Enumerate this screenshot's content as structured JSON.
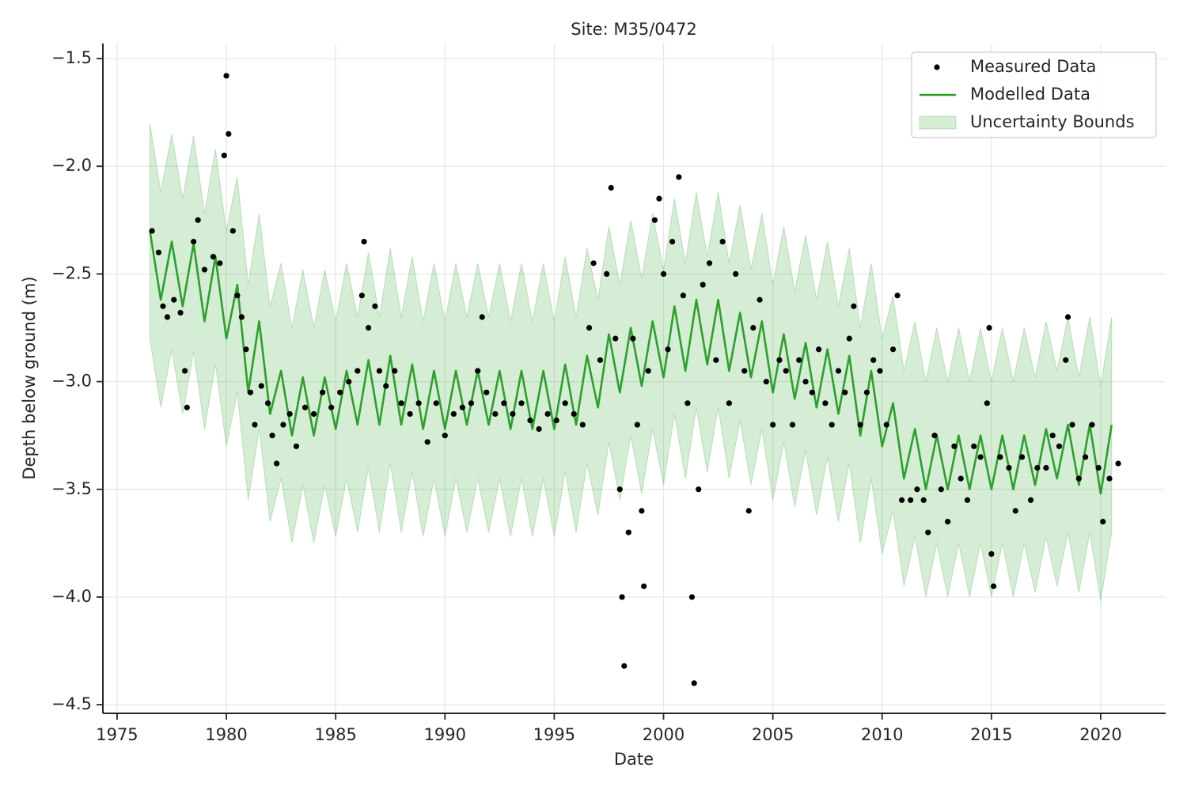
{
  "chart_data": {
    "type": "line",
    "title": "Site: M35/0472",
    "xlabel": "Date",
    "ylabel": "Depth below ground (m)",
    "xlim": [
      1974.35,
      2022.97
    ],
    "ylim": [
      -4.54,
      -1.43
    ],
    "xticks": [
      1975,
      1980,
      1985,
      1990,
      1995,
      2000,
      2005,
      2010,
      2015,
      2020
    ],
    "yticks": [
      {
        "value": -1.5,
        "label": "−1.5"
      },
      {
        "value": -2.0,
        "label": "−2.0"
      },
      {
        "value": -2.5,
        "label": "−2.5"
      },
      {
        "value": -3.0,
        "label": "−3.0"
      },
      {
        "value": -3.5,
        "label": "−3.5"
      },
      {
        "value": -4.0,
        "label": "−4.0"
      },
      {
        "value": -4.5,
        "label": "−4.5"
      }
    ],
    "grid": true,
    "legend": "upper right",
    "series": [
      {
        "name": "Measured Data",
        "color": "#000000",
        "style": "scatter",
        "x": [
          1976.6,
          1976.9,
          1977.1,
          1977.3,
          1977.6,
          1977.9,
          1978.1,
          1978.2,
          1978.5,
          1978.7,
          1979.0,
          1979.4,
          1979.7,
          1979.9,
          1980.0,
          1980.1,
          1980.3,
          1980.5,
          1980.7,
          1980.9,
          1981.1,
          1981.3,
          1981.6,
          1981.9,
          1982.1,
          1982.3,
          1982.6,
          1982.9,
          1983.2,
          1983.6,
          1984.0,
          1984.4,
          1984.8,
          1985.2,
          1985.6,
          1986.0,
          1986.2,
          1986.3,
          1986.5,
          1986.8,
          1987.0,
          1987.3,
          1987.7,
          1988.0,
          1988.4,
          1988.8,
          1989.2,
          1989.6,
          1990.0,
          1990.4,
          1990.8,
          1991.2,
          1991.5,
          1991.7,
          1991.9,
          1992.3,
          1992.7,
          1993.1,
          1993.5,
          1993.9,
          1994.3,
          1994.7,
          1995.1,
          1995.5,
          1995.9,
          1996.3,
          1996.6,
          1996.8,
          1997.1,
          1997.4,
          1997.6,
          1997.8,
          1998.0,
          1998.1,
          1998.2,
          1998.4,
          1998.6,
          1998.8,
          1999.0,
          1999.1,
          1999.3,
          1999.6,
          1999.8,
          2000.0,
          2000.2,
          2000.4,
          2000.7,
          2000.9,
          2001.1,
          2001.3,
          2001.4,
          2001.6,
          2001.8,
          2002.1,
          2002.4,
          2002.7,
          2003.0,
          2003.3,
          2003.7,
          2003.9,
          2004.1,
          2004.4,
          2004.7,
          2005.0,
          2005.3,
          2005.6,
          2005.9,
          2006.2,
          2006.5,
          2006.8,
          2007.1,
          2007.4,
          2007.7,
          2008.0,
          2008.3,
          2008.5,
          2008.7,
          2009.0,
          2009.3,
          2009.6,
          2009.9,
          2010.2,
          2010.5,
          2010.7,
          2010.9,
          2011.3,
          2011.6,
          2011.9,
          2012.1,
          2012.4,
          2012.7,
          2013.0,
          2013.3,
          2013.6,
          2013.9,
          2014.2,
          2014.5,
          2014.8,
          2014.9,
          2015.0,
          2015.1,
          2015.4,
          2015.8,
          2016.1,
          2016.4,
          2016.8,
          2017.1,
          2017.5,
          2017.8,
          2018.1,
          2018.4,
          2018.5,
          2018.7,
          2019.0,
          2019.3,
          2019.6,
          2019.9,
          2020.1,
          2020.4,
          2020.8
        ],
        "values": [
          -2.3,
          -2.4,
          -2.65,
          -2.7,
          -2.62,
          -2.68,
          -2.95,
          -3.12,
          -2.35,
          -2.25,
          -2.48,
          -2.42,
          -2.45,
          -1.95,
          -1.58,
          -1.85,
          -2.3,
          -2.6,
          -2.7,
          -2.85,
          -3.05,
          -3.2,
          -3.02,
          -3.1,
          -3.25,
          -3.38,
          -3.2,
          -3.15,
          -3.3,
          -3.12,
          -3.15,
          -3.05,
          -3.12,
          -3.05,
          -3.0,
          -2.95,
          -2.6,
          -2.35,
          -2.75,
          -2.65,
          -2.95,
          -3.02,
          -2.95,
          -3.1,
          -3.15,
          -3.1,
          -3.28,
          -3.1,
          -3.25,
          -3.15,
          -3.12,
          -3.1,
          -2.95,
          -2.7,
          -3.05,
          -3.15,
          -3.1,
          -3.15,
          -3.1,
          -3.18,
          -3.22,
          -3.15,
          -3.18,
          -3.1,
          -3.15,
          -3.2,
          -2.75,
          -2.45,
          -2.9,
          -2.5,
          -2.1,
          -2.8,
          -3.5,
          -4.0,
          -4.32,
          -3.7,
          -2.8,
          -3.2,
          -3.6,
          -3.95,
          -2.95,
          -2.25,
          -2.15,
          -2.5,
          -2.85,
          -2.35,
          -2.05,
          -2.6,
          -3.1,
          -4.0,
          -4.4,
          -3.5,
          -2.55,
          -2.45,
          -2.9,
          -2.35,
          -3.1,
          -2.5,
          -2.95,
          -3.6,
          -2.75,
          -2.62,
          -3.0,
          -3.2,
          -2.9,
          -2.95,
          -3.2,
          -2.9,
          -3.0,
          -3.05,
          -2.85,
          -3.1,
          -3.2,
          -2.95,
          -3.05,
          -2.8,
          -2.65,
          -3.2,
          -3.05,
          -2.9,
          -2.95,
          -3.2,
          -2.85,
          -2.6,
          -3.55,
          -3.55,
          -3.5,
          -3.55,
          -3.7,
          -3.25,
          -3.5,
          -3.65,
          -3.3,
          -3.45,
          -3.55,
          -3.3,
          -3.35,
          -3.1,
          -2.75,
          -3.8,
          -3.95,
          -3.35,
          -3.4,
          -3.6,
          -3.35,
          -3.55,
          -3.4,
          -3.4,
          -3.25,
          -3.3,
          -2.9,
          -2.7,
          -3.2,
          -3.45,
          -3.35,
          -3.2,
          -3.4,
          -3.65,
          -3.45,
          -3.38
        ]
      },
      {
        "name": "Modelled Data",
        "color": "#2ca02c",
        "style": "line",
        "x": [
          1976.5,
          1977.0,
          1977.5,
          1978.0,
          1978.5,
          1979.0,
          1979.5,
          1980.0,
          1980.5,
          1981.0,
          1981.5,
          1982.0,
          1982.5,
          1983.0,
          1983.5,
          1984.0,
          1984.5,
          1985.0,
          1985.5,
          1986.0,
          1986.5,
          1987.0,
          1987.5,
          1988.0,
          1988.5,
          1989.0,
          1989.5,
          1990.0,
          1990.5,
          1991.0,
          1991.5,
          1992.0,
          1992.5,
          1993.0,
          1993.5,
          1994.0,
          1994.5,
          1995.0,
          1995.5,
          1996.0,
          1996.5,
          1997.0,
          1997.5,
          1998.0,
          1998.5,
          1999.0,
          1999.5,
          2000.0,
          2000.5,
          2001.0,
          2001.5,
          2002.0,
          2002.5,
          2003.0,
          2003.5,
          2004.0,
          2004.5,
          2005.0,
          2005.5,
          2006.0,
          2006.5,
          2007.0,
          2007.5,
          2008.0,
          2008.5,
          2009.0,
          2009.5,
          2010.0,
          2010.5,
          2011.0,
          2011.5,
          2012.0,
          2012.5,
          2013.0,
          2013.5,
          2014.0,
          2014.5,
          2015.0,
          2015.5,
          2016.0,
          2016.5,
          2017.0,
          2017.5,
          2018.0,
          2018.5,
          2019.0,
          2019.5,
          2020.0,
          2020.5
        ],
        "values": [
          -2.3,
          -2.62,
          -2.35,
          -2.65,
          -2.36,
          -2.72,
          -2.42,
          -2.8,
          -2.55,
          -3.05,
          -2.72,
          -3.15,
          -2.95,
          -3.25,
          -2.98,
          -3.25,
          -2.98,
          -3.22,
          -2.95,
          -3.2,
          -2.9,
          -3.2,
          -2.88,
          -3.2,
          -2.92,
          -3.22,
          -2.95,
          -3.22,
          -2.95,
          -3.2,
          -2.95,
          -3.2,
          -2.95,
          -3.22,
          -2.95,
          -3.22,
          -2.95,
          -3.22,
          -2.92,
          -3.2,
          -2.88,
          -3.12,
          -2.78,
          -3.05,
          -2.75,
          -3.02,
          -2.72,
          -2.98,
          -2.65,
          -2.95,
          -2.62,
          -2.92,
          -2.62,
          -2.95,
          -2.68,
          -2.98,
          -2.72,
          -3.05,
          -2.78,
          -3.08,
          -2.82,
          -3.12,
          -2.85,
          -3.15,
          -2.88,
          -3.25,
          -2.95,
          -3.3,
          -3.1,
          -3.45,
          -3.22,
          -3.5,
          -3.25,
          -3.5,
          -3.25,
          -3.5,
          -3.25,
          -3.5,
          -3.25,
          -3.5,
          -3.25,
          -3.48,
          -3.22,
          -3.45,
          -3.2,
          -3.48,
          -3.2,
          -3.52,
          -3.2
        ]
      },
      {
        "name": "Uncertainty Bounds",
        "color": "#2ca02c",
        "style": "band",
        "x": [
          1976.5,
          1977.0,
          1977.5,
          1978.0,
          1978.5,
          1979.0,
          1979.5,
          1980.0,
          1980.5,
          1981.0,
          1981.5,
          1982.0,
          1982.5,
          1983.0,
          1983.5,
          1984.0,
          1984.5,
          1985.0,
          1985.5,
          1986.0,
          1986.5,
          1987.0,
          1987.5,
          1988.0,
          1988.5,
          1989.0,
          1989.5,
          1990.0,
          1990.5,
          1991.0,
          1991.5,
          1992.0,
          1992.5,
          1993.0,
          1993.5,
          1994.0,
          1994.5,
          1995.0,
          1995.5,
          1996.0,
          1996.5,
          1997.0,
          1997.5,
          1998.0,
          1998.5,
          1999.0,
          1999.5,
          2000.0,
          2000.5,
          2001.0,
          2001.5,
          2002.0,
          2002.5,
          2003.0,
          2003.5,
          2004.0,
          2004.5,
          2005.0,
          2005.5,
          2006.0,
          2006.5,
          2007.0,
          2007.5,
          2008.0,
          2008.5,
          2009.0,
          2009.5,
          2010.0,
          2010.5,
          2011.0,
          2011.5,
          2012.0,
          2012.5,
          2013.0,
          2013.5,
          2014.0,
          2014.5,
          2015.0,
          2015.5,
          2016.0,
          2016.5,
          2017.0,
          2017.5,
          2018.0,
          2018.5,
          2019.0,
          2019.5,
          2020.0,
          2020.5
        ],
        "upper": [
          -1.8,
          -2.12,
          -1.85,
          -2.15,
          -1.86,
          -2.22,
          -1.92,
          -2.3,
          -2.05,
          -2.55,
          -2.22,
          -2.65,
          -2.45,
          -2.75,
          -2.48,
          -2.75,
          -2.48,
          -2.72,
          -2.45,
          -2.7,
          -2.4,
          -2.7,
          -2.38,
          -2.7,
          -2.42,
          -2.72,
          -2.45,
          -2.72,
          -2.45,
          -2.7,
          -2.45,
          -2.7,
          -2.45,
          -2.72,
          -2.45,
          -2.72,
          -2.45,
          -2.72,
          -2.42,
          -2.7,
          -2.38,
          -2.62,
          -2.28,
          -2.55,
          -2.25,
          -2.52,
          -2.22,
          -2.48,
          -2.15,
          -2.45,
          -2.12,
          -2.42,
          -2.12,
          -2.45,
          -2.18,
          -2.48,
          -2.22,
          -2.55,
          -2.28,
          -2.58,
          -2.32,
          -2.62,
          -2.35,
          -2.65,
          -2.38,
          -2.75,
          -2.45,
          -2.8,
          -2.6,
          -2.95,
          -2.72,
          -3.0,
          -2.75,
          -3.0,
          -2.75,
          -3.0,
          -2.75,
          -3.0,
          -2.75,
          -3.0,
          -2.75,
          -2.98,
          -2.72,
          -2.95,
          -2.7,
          -2.98,
          -2.7,
          -3.02,
          -2.7
        ],
        "lower": [
          -2.8,
          -3.12,
          -2.85,
          -3.15,
          -2.86,
          -3.22,
          -2.92,
          -3.3,
          -3.05,
          -3.55,
          -3.22,
          -3.65,
          -3.45,
          -3.75,
          -3.48,
          -3.75,
          -3.48,
          -3.72,
          -3.45,
          -3.7,
          -3.4,
          -3.7,
          -3.38,
          -3.7,
          -3.42,
          -3.72,
          -3.45,
          -3.72,
          -3.45,
          -3.7,
          -3.45,
          -3.7,
          -3.45,
          -3.72,
          -3.45,
          -3.72,
          -3.45,
          -3.72,
          -3.42,
          -3.7,
          -3.38,
          -3.62,
          -3.28,
          -3.55,
          -3.25,
          -3.52,
          -3.22,
          -3.48,
          -3.15,
          -3.45,
          -3.12,
          -3.42,
          -3.12,
          -3.45,
          -3.18,
          -3.48,
          -3.22,
          -3.55,
          -3.28,
          -3.58,
          -3.32,
          -3.62,
          -3.35,
          -3.65,
          -3.38,
          -3.75,
          -3.45,
          -3.8,
          -3.6,
          -3.95,
          -3.72,
          -4.0,
          -3.75,
          -4.0,
          -3.75,
          -4.0,
          -3.75,
          -4.0,
          -3.75,
          -4.0,
          -3.75,
          -3.98,
          -3.72,
          -3.95,
          -3.7,
          -3.98,
          -3.7,
          -4.02,
          -3.7
        ]
      }
    ]
  }
}
